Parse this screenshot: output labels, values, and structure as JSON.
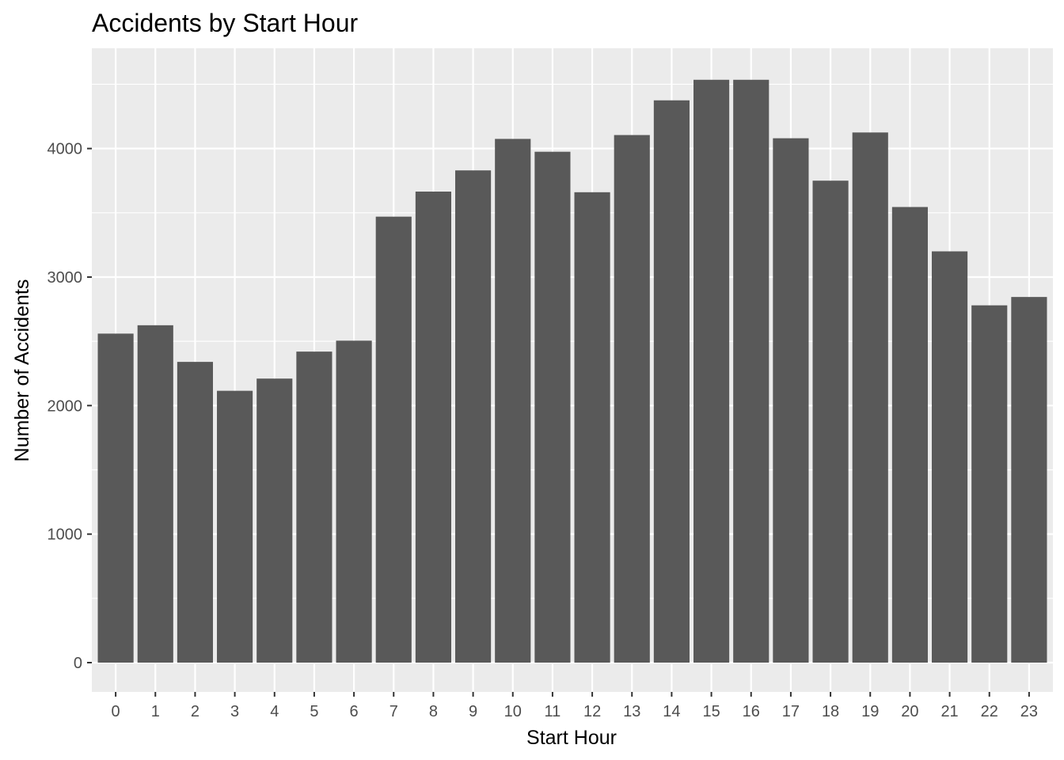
{
  "chart_data": {
    "type": "bar",
    "title": "Accidents by Start Hour",
    "xlabel": "Start Hour",
    "ylabel": "Number of Accidents",
    "categories": [
      "0",
      "1",
      "2",
      "3",
      "4",
      "5",
      "6",
      "7",
      "8",
      "9",
      "10",
      "11",
      "12",
      "13",
      "14",
      "15",
      "16",
      "17",
      "18",
      "19",
      "20",
      "21",
      "22",
      "23"
    ],
    "values": [
      2560,
      2625,
      2340,
      2115,
      2210,
      2420,
      2505,
      3470,
      3665,
      3830,
      4075,
      3975,
      3660,
      4105,
      4375,
      4535,
      4535,
      4080,
      3750,
      4125,
      3545,
      3200,
      2780,
      2845
    ],
    "ylim": [
      0,
      4780
    ],
    "yticks": [
      0,
      1000,
      2000,
      3000,
      4000
    ],
    "grid": true,
    "legend": "none",
    "colors": {
      "panel": "#ebebeb",
      "grid": "#ffffff",
      "bar": "#595959",
      "tick_text": "#4d4d4d",
      "tick_mark": "#333333"
    }
  }
}
